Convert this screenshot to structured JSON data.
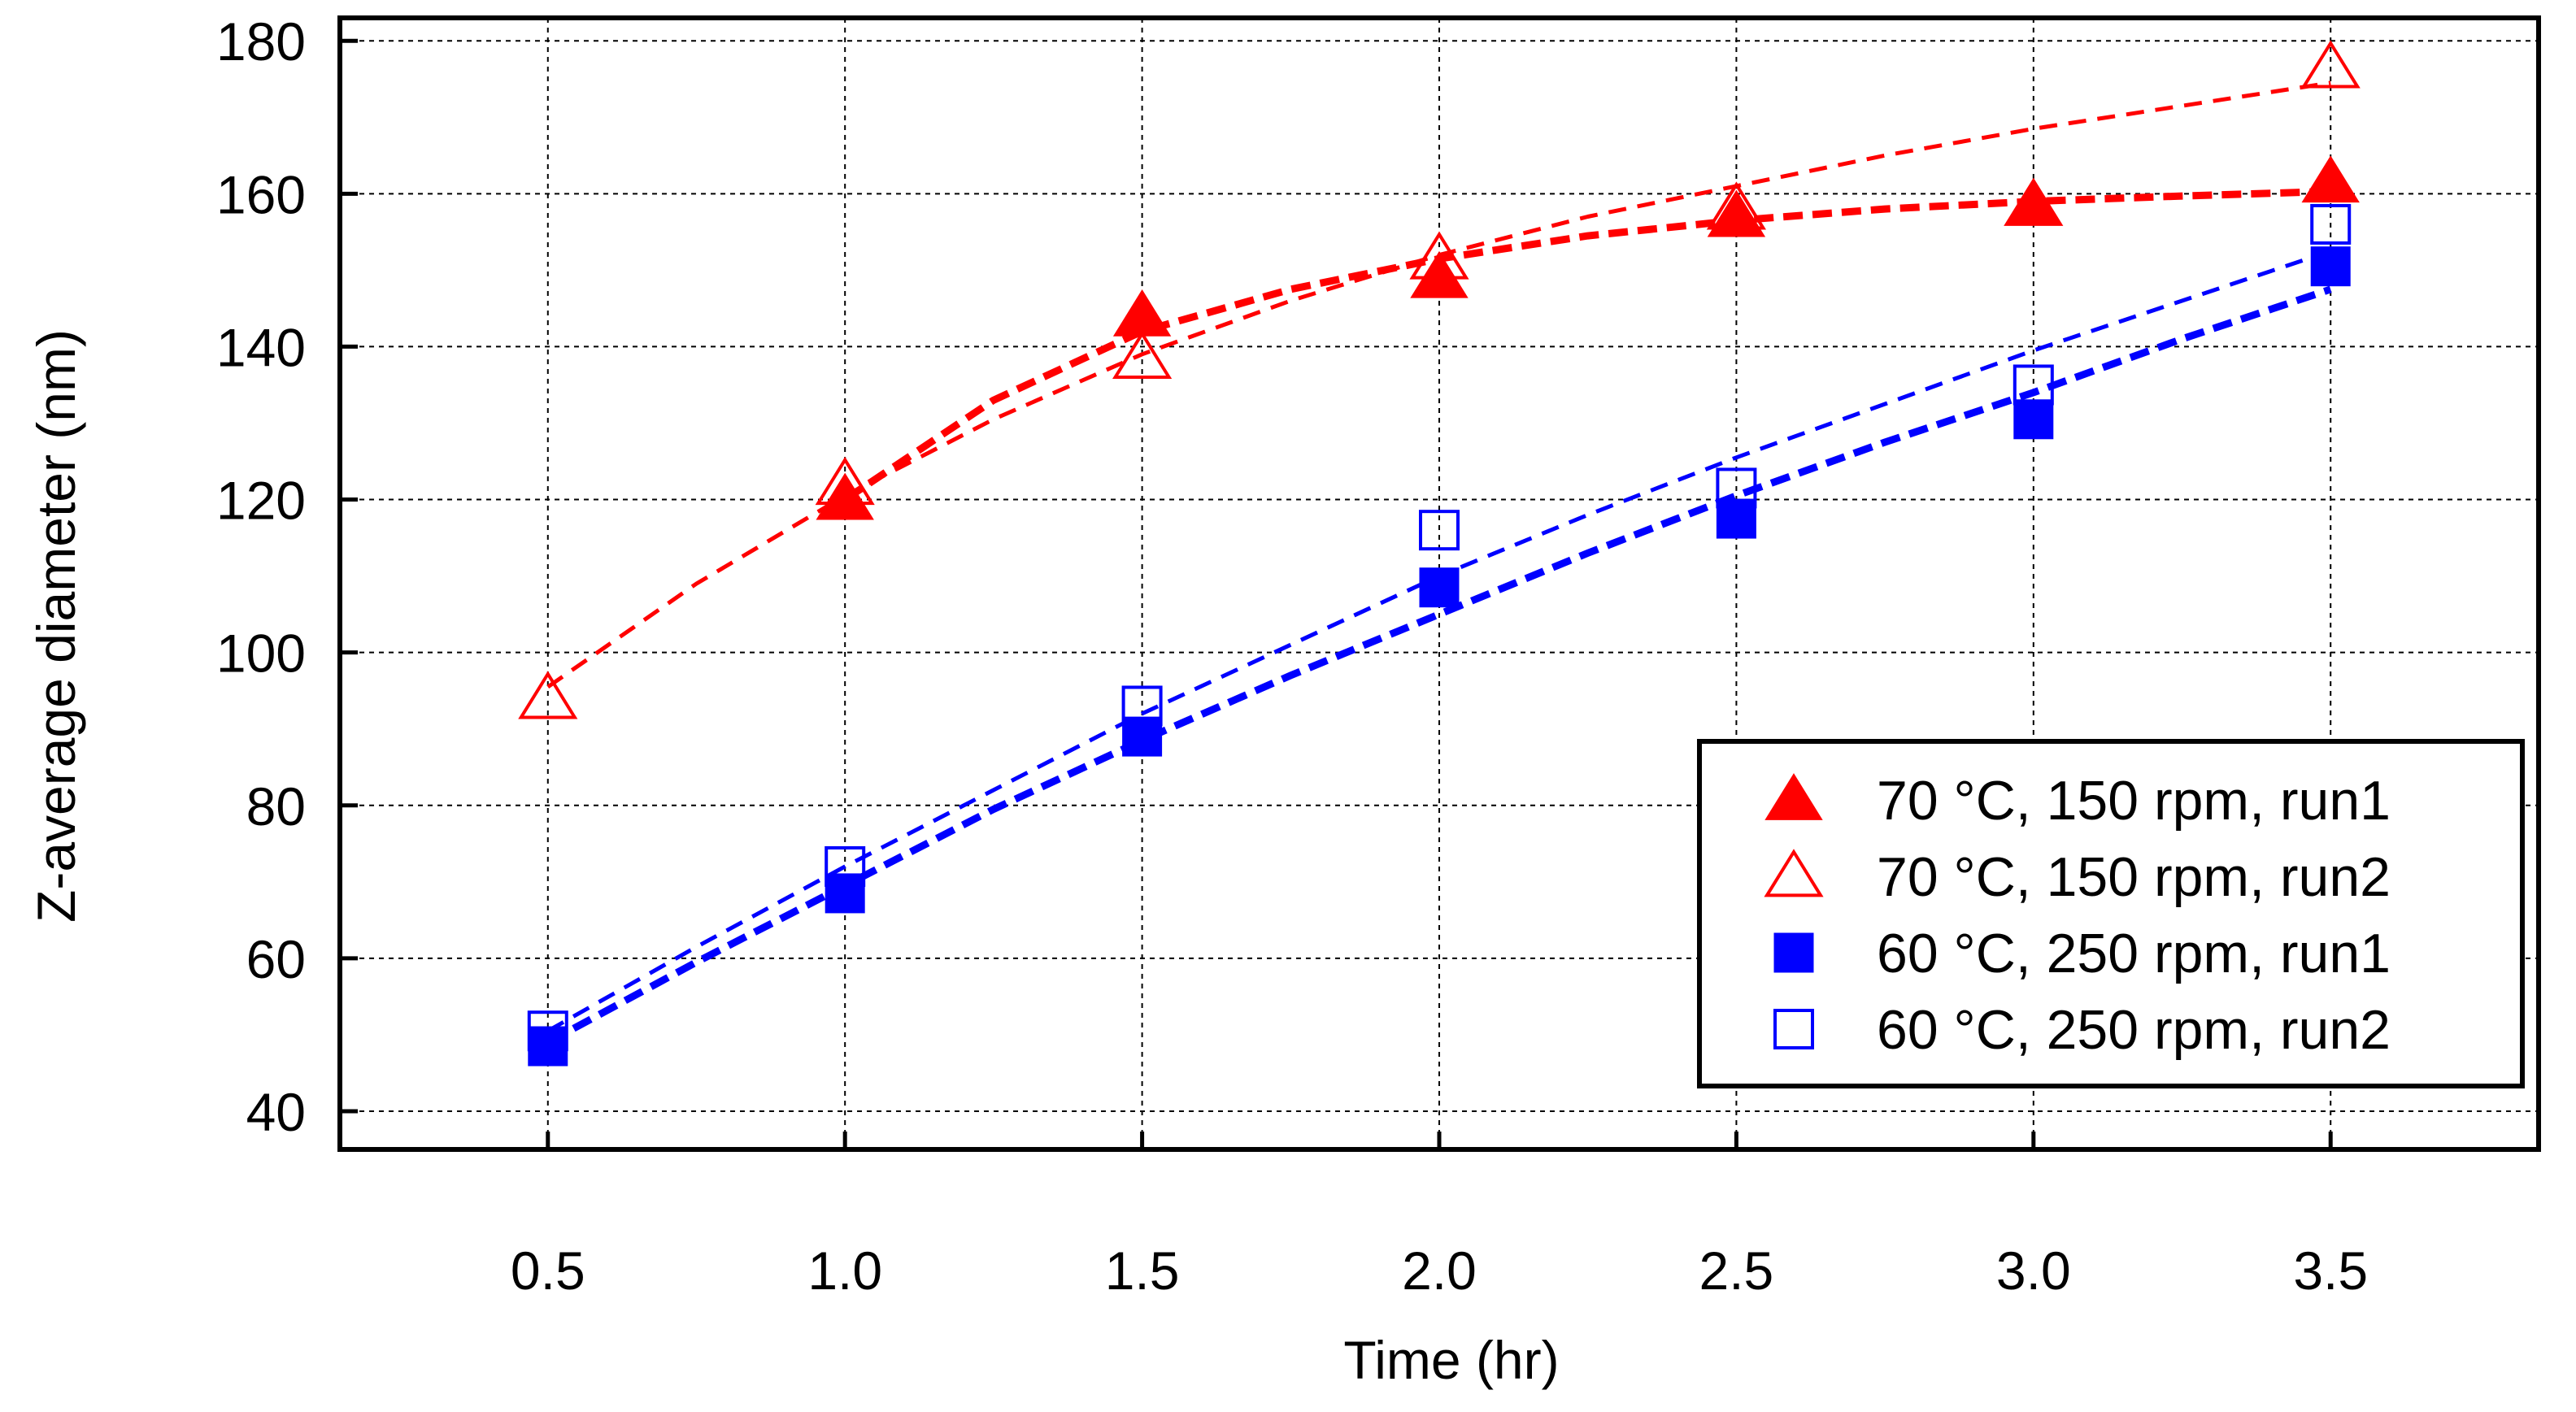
{
  "chart_data": {
    "type": "scatter",
    "title": "",
    "xlabel": "Time (hr)",
    "ylabel": "Z-average diameter (nm)",
    "xlim": [
      0.15,
      3.85
    ],
    "ylim": [
      35,
      183
    ],
    "x_ticks": [
      "0.5",
      "1.0",
      "1.5",
      "2.0",
      "2.5",
      "3.0",
      "3.5"
    ],
    "y_ticks": [
      "40",
      "60",
      "80",
      "100",
      "120",
      "140",
      "160",
      "180"
    ],
    "grid": true,
    "legend_position": "lower-right",
    "x": [
      0.5,
      1.0,
      1.5,
      2.0,
      2.5,
      3.0,
      3.5
    ],
    "series": [
      {
        "name": "70 °C, 150 rpm, run1",
        "marker": "triangle-filled",
        "color": "#ff0000",
        "x": [
          1.0,
          1.5,
          2.0,
          2.5,
          3.0,
          3.5
        ],
        "values": [
          120,
          144,
          149,
          157,
          158.5,
          161.5
        ],
        "fit": [
          [
            1.0,
            120
          ],
          [
            1.25,
            133
          ],
          [
            1.5,
            142
          ],
          [
            1.75,
            147.5
          ],
          [
            2.0,
            151.5
          ],
          [
            2.25,
            154.5
          ],
          [
            2.5,
            156.5
          ],
          [
            2.75,
            158
          ],
          [
            3.0,
            159
          ],
          [
            3.25,
            159.7
          ],
          [
            3.5,
            160.3
          ]
        ],
        "fit_width": "thick"
      },
      {
        "name": "70 °C, 150 rpm, run2",
        "marker": "triangle-open",
        "color": "#ff0000",
        "x": [
          0.5,
          1.0,
          1.5,
          2.0,
          2.5,
          3.0,
          3.5
        ],
        "values": [
          94,
          122,
          138.5,
          151.5,
          158,
          158.5,
          176.5
        ],
        "fit": [
          [
            0.5,
            95.5
          ],
          [
            0.75,
            109
          ],
          [
            1.0,
            120.5
          ],
          [
            1.25,
            130.5
          ],
          [
            1.5,
            139
          ],
          [
            1.75,
            146
          ],
          [
            2.0,
            152
          ],
          [
            2.25,
            157
          ],
          [
            2.5,
            161
          ],
          [
            2.75,
            165
          ],
          [
            3.0,
            168.5
          ],
          [
            3.25,
            171.5
          ],
          [
            3.5,
            174.5
          ]
        ],
        "fit_width": "thin"
      },
      {
        "name": "60 °C, 250 rpm, run1",
        "marker": "square-filled",
        "color": "#0000ff",
        "x": [
          0.5,
          1.0,
          1.5,
          2.0,
          2.5,
          3.0,
          3.5
        ],
        "values": [
          48.5,
          68.5,
          89,
          108.5,
          117.5,
          130.5,
          150.5
        ],
        "fit": [
          [
            0.5,
            49
          ],
          [
            0.75,
            59.5
          ],
          [
            1.0,
            69.5
          ],
          [
            1.25,
            79.5
          ],
          [
            1.5,
            88.5
          ],
          [
            1.75,
            97
          ],
          [
            2.0,
            105
          ],
          [
            2.25,
            113
          ],
          [
            2.5,
            120.5
          ],
          [
            2.75,
            127.5
          ],
          [
            3.0,
            134
          ],
          [
            3.25,
            141
          ],
          [
            3.5,
            147.5
          ]
        ],
        "fit_width": "thick"
      },
      {
        "name": "60 °C, 250 rpm, run2",
        "marker": "square-open",
        "color": "#0000ff",
        "x": [
          0.5,
          1.0,
          1.5,
          2.0,
          2.5,
          3.0,
          3.5
        ],
        "values": [
          50.5,
          72,
          93,
          116,
          121.5,
          135,
          156
        ],
        "fit": [
          [
            0.5,
            50.5
          ],
          [
            0.75,
            61.5
          ],
          [
            1.0,
            72
          ],
          [
            1.25,
            82
          ],
          [
            1.5,
            92
          ],
          [
            1.75,
            101
          ],
          [
            2.0,
            110
          ],
          [
            2.25,
            118
          ],
          [
            2.5,
            125.5
          ],
          [
            2.75,
            132.5
          ],
          [
            3.0,
            139.5
          ],
          [
            3.25,
            146
          ],
          [
            3.5,
            152.5
          ]
        ],
        "fit_width": "thin"
      }
    ]
  }
}
